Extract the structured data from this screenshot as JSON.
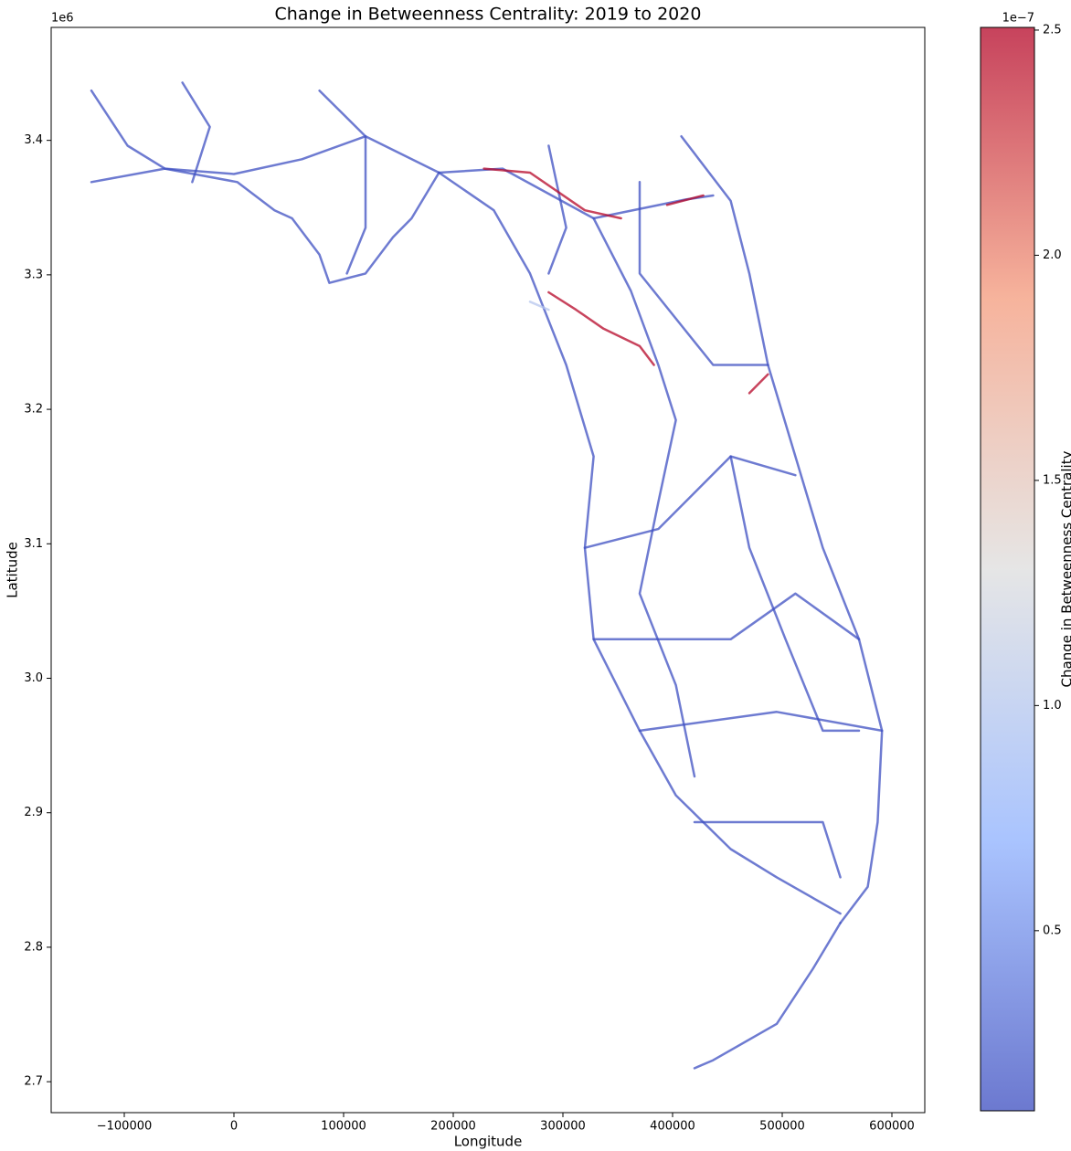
{
  "chart_data": {
    "type": "map-lines",
    "title": "Change in Betweenness Centrality: 2019 to 2020",
    "x_label": "Longitude",
    "y_label": "Latitude",
    "y_offset_label": "1e6",
    "xlim": [
      -166667,
      630000
    ],
    "ylim": [
      2677000,
      3484000
    ],
    "xticks": [
      {
        "value": -100000,
        "label": "−100000"
      },
      0,
      100000,
      200000,
      300000,
      400000,
      500000,
      600000
    ],
    "yticks": [
      {
        "value": 2700000,
        "label": "2.7"
      },
      {
        "value": 2800000,
        "label": "2.8"
      },
      {
        "value": 2900000,
        "label": "2.9"
      },
      {
        "value": 3000000,
        "label": "3.0"
      },
      {
        "value": 3100000,
        "label": "3.1"
      },
      {
        "value": 3200000,
        "label": "3.2"
      },
      {
        "value": 3300000,
        "label": "3.3"
      },
      {
        "value": 3400000,
        "label": "3.4"
      }
    ],
    "colormap": "coolwarm",
    "alpha": 0.75,
    "colorbar": {
      "label": "Change in Betweenness Centrality",
      "offset_label": "1e−7",
      "lim": [
        1e-08,
        2.506e-07
      ],
      "ticks": [
        {
          "value": 5e-08,
          "label": "0.5"
        },
        {
          "value": 1e-07,
          "label": "1.0"
        },
        {
          "value": 1.5e-07,
          "label": "1.5"
        },
        {
          "value": 2e-07,
          "label": "2.0"
        },
        {
          "value": 2.5e-07,
          "label": "2.5"
        }
      ]
    },
    "series": [
      {
        "x": [
          -130000,
          -97000,
          -63000,
          0,
          62000,
          120000,
          187000,
          245000,
          328000,
          412000,
          437000
        ],
        "y": [
          3437000,
          3396000,
          3379000,
          3375000,
          3386000,
          3403000,
          3376000,
          3379000,
          3342000,
          3356000,
          3359000
        ],
        "value": 1.2e-08
      },
      {
        "x": [
          -130000,
          -63000,
          3000,
          37000,
          53000,
          78000,
          87000,
          120000,
          145000,
          162000,
          187000
        ],
        "y": [
          3369000,
          3379000,
          3369000,
          3348000,
          3342000,
          3315000,
          3294000,
          3301000,
          3328000,
          3342000,
          3376000
        ],
        "value": 1.2e-08
      },
      {
        "x": [
          187000,
          237000,
          270000,
          303000,
          328000,
          320000,
          328000,
          370000,
          403000,
          453000,
          495000,
          553000
        ],
        "y": [
          3376000,
          3348000,
          3301000,
          3233000,
          3165000,
          3097000,
          3029000,
          2961000,
          2913000,
          2873000,
          2852000,
          2825000
        ],
        "value": 1.2e-08
      },
      {
        "x": [
          408000,
          453000,
          470000,
          487000,
          512000,
          537000,
          570000,
          591000,
          587000,
          578000,
          553000
        ],
        "y": [
          3403000,
          3355000,
          3301000,
          3233000,
          3165000,
          3097000,
          3029000,
          2961000,
          2893000,
          2845000,
          2818000
        ],
        "value": 1.2e-08
      },
      {
        "x": [
          328000,
          362000,
          387000,
          403000,
          387000,
          370000,
          403000,
          420000
        ],
        "y": [
          3342000,
          3288000,
          3233000,
          3192000,
          3131000,
          3063000,
          2995000,
          2927000
        ],
        "value": 1.2e-08
      },
      {
        "x": [
          420000,
          537000,
          553000
        ],
        "y": [
          2893000,
          2893000,
          2852000
        ],
        "value": 1.2e-08
      },
      {
        "x": [
          320000,
          387000,
          453000,
          512000
        ],
        "y": [
          3097000,
          3111000,
          3165000,
          3151000
        ],
        "value": 1.2e-08
      },
      {
        "x": [
          453000,
          470000,
          503000,
          537000,
          570000
        ],
        "y": [
          3165000,
          3097000,
          3029000,
          2961000,
          2961000
        ],
        "value": 1.2e-08
      },
      {
        "x": [
          553000,
          528000,
          495000,
          437000,
          420000
        ],
        "y": [
          2818000,
          2784000,
          2743000,
          2716000,
          2710000
        ],
        "value": 1.2e-08
      },
      {
        "x": [
          78000,
          120000,
          120000,
          103000
        ],
        "y": [
          3437000,
          3403000,
          3335000,
          3301000
        ],
        "value": 1.2e-08
      },
      {
        "x": [
          -47000,
          -22000,
          -38000
        ],
        "y": [
          3443000,
          3410000,
          3369000
        ],
        "value": 1.2e-08
      },
      {
        "x": [
          287000,
          303000,
          287000
        ],
        "y": [
          3396000,
          3335000,
          3301000
        ],
        "value": 1.2e-08
      },
      {
        "x": [
          370000,
          370000,
          437000,
          487000
        ],
        "y": [
          3369000,
          3301000,
          3233000,
          3233000
        ],
        "value": 1.2e-08
      },
      {
        "x": [
          328000,
          453000,
          512000,
          570000
        ],
        "y": [
          3029000,
          3029000,
          3063000,
          3029000
        ],
        "value": 1.2e-08
      },
      {
        "x": [
          370000,
          495000,
          591000
        ],
        "y": [
          2961000,
          2975000,
          2961000
        ],
        "value": 1.2e-08
      },
      {
        "x": [
          228000,
          270000,
          320000,
          353000
        ],
        "y": [
          3379000,
          3376000,
          3348000,
          3342000
        ],
        "value": 2.5e-07
      },
      {
        "x": [
          395000,
          428000
        ],
        "y": [
          3352000,
          3359000
        ],
        "value": 2.5e-07
      },
      {
        "x": [
          287000,
          312000,
          337000,
          370000,
          383000
        ],
        "y": [
          3287000,
          3274000,
          3260000,
          3247000,
          3233000
        ],
        "value": 2.5e-07
      },
      {
        "x": [
          470000,
          487000
        ],
        "y": [
          3212000,
          3226000
        ],
        "value": 2.5e-07
      },
      {
        "x": [
          270000,
          287000
        ],
        "y": [
          3280000,
          3274000
        ],
        "value": 1e-07
      }
    ]
  }
}
